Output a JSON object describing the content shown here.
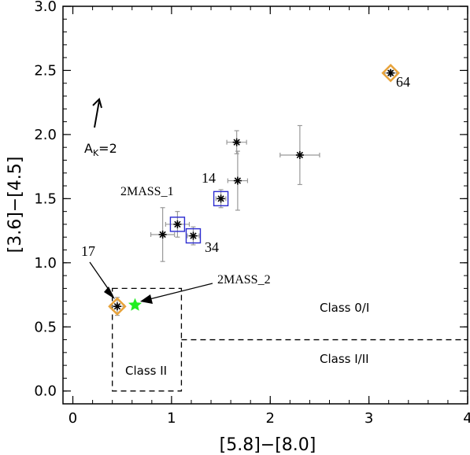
{
  "chart_data": {
    "type": "scatter",
    "xlabel": "[5.8]−[8.0]",
    "ylabel": "[3.6]−[4.5]",
    "xlim": [
      -0.1,
      4.0
    ],
    "ylim": [
      -0.1,
      3.0
    ],
    "xticks": [
      "0",
      "1",
      "2",
      "3",
      "4"
    ],
    "xtick_values": [
      0,
      1,
      2,
      3,
      4
    ],
    "yticks": [
      "0.0",
      "0.5",
      "1.0",
      "1.5",
      "2.0",
      "2.5",
      "3.0"
    ],
    "ytick_values": [
      0,
      0.5,
      1.0,
      1.5,
      2.0,
      2.5,
      3.0
    ],
    "grid": false,
    "colors": {
      "point": "#000000",
      "errorbar": "#999999",
      "orange_diamond": "#e8a33a",
      "blue_square": "#2b2bd0",
      "green_star": "#22ee22",
      "region_line": "#000000"
    },
    "points": [
      {
        "x": 3.22,
        "y": 2.48,
        "xerr": 0.06,
        "yerr": 0.02
      },
      {
        "x": 1.66,
        "y": 1.94,
        "xerr": 0.1,
        "yerr": 0.09
      },
      {
        "x": 2.3,
        "y": 1.84,
        "xerr": 0.2,
        "yerr": 0.23
      },
      {
        "x": 1.67,
        "y": 1.64,
        "xerr": 0.1,
        "yerr": 0.23
      },
      {
        "x": 1.5,
        "y": 1.5,
        "xerr": 0.05,
        "yerr": 0.07
      },
      {
        "x": 1.06,
        "y": 1.3,
        "xerr": 0.12,
        "yerr": 0.1
      },
      {
        "x": 0.91,
        "y": 1.22,
        "xerr": 0.12,
        "yerr": 0.21
      },
      {
        "x": 1.22,
        "y": 1.21,
        "xerr": 0.06,
        "yerr": 0.07
      },
      {
        "x": 0.45,
        "y": 0.66,
        "xerr": 0.07,
        "yerr": 0.07
      }
    ],
    "orange_diamonds": [
      {
        "x": 3.22,
        "y": 2.48
      },
      {
        "x": 0.45,
        "y": 0.66
      }
    ],
    "blue_squares": [
      {
        "x": 1.5,
        "y": 1.5
      },
      {
        "x": 1.06,
        "y": 1.3
      },
      {
        "x": 1.22,
        "y": 1.21
      }
    ],
    "green_star": {
      "x": 0.63,
      "y": 0.67
    },
    "regions": {
      "class_ii_box": {
        "x0": 0.4,
        "x1": 1.1,
        "y0": 0.0,
        "y1": 0.8
      },
      "class_i_boundary_y": 0.4,
      "class_i_boundary_x0": 1.1
    },
    "annotations": {
      "p64": "64",
      "p14": "14",
      "p34": "34",
      "p17": "17",
      "twomass1": "2MASS_1",
      "twomass2": "2MASS_2",
      "class0i": "Class 0/I",
      "class1ii": "Class I/II",
      "class2": "Class II",
      "extinction_prefix": "A",
      "extinction_sub": "K",
      "extinction_suffix": "=2"
    }
  }
}
